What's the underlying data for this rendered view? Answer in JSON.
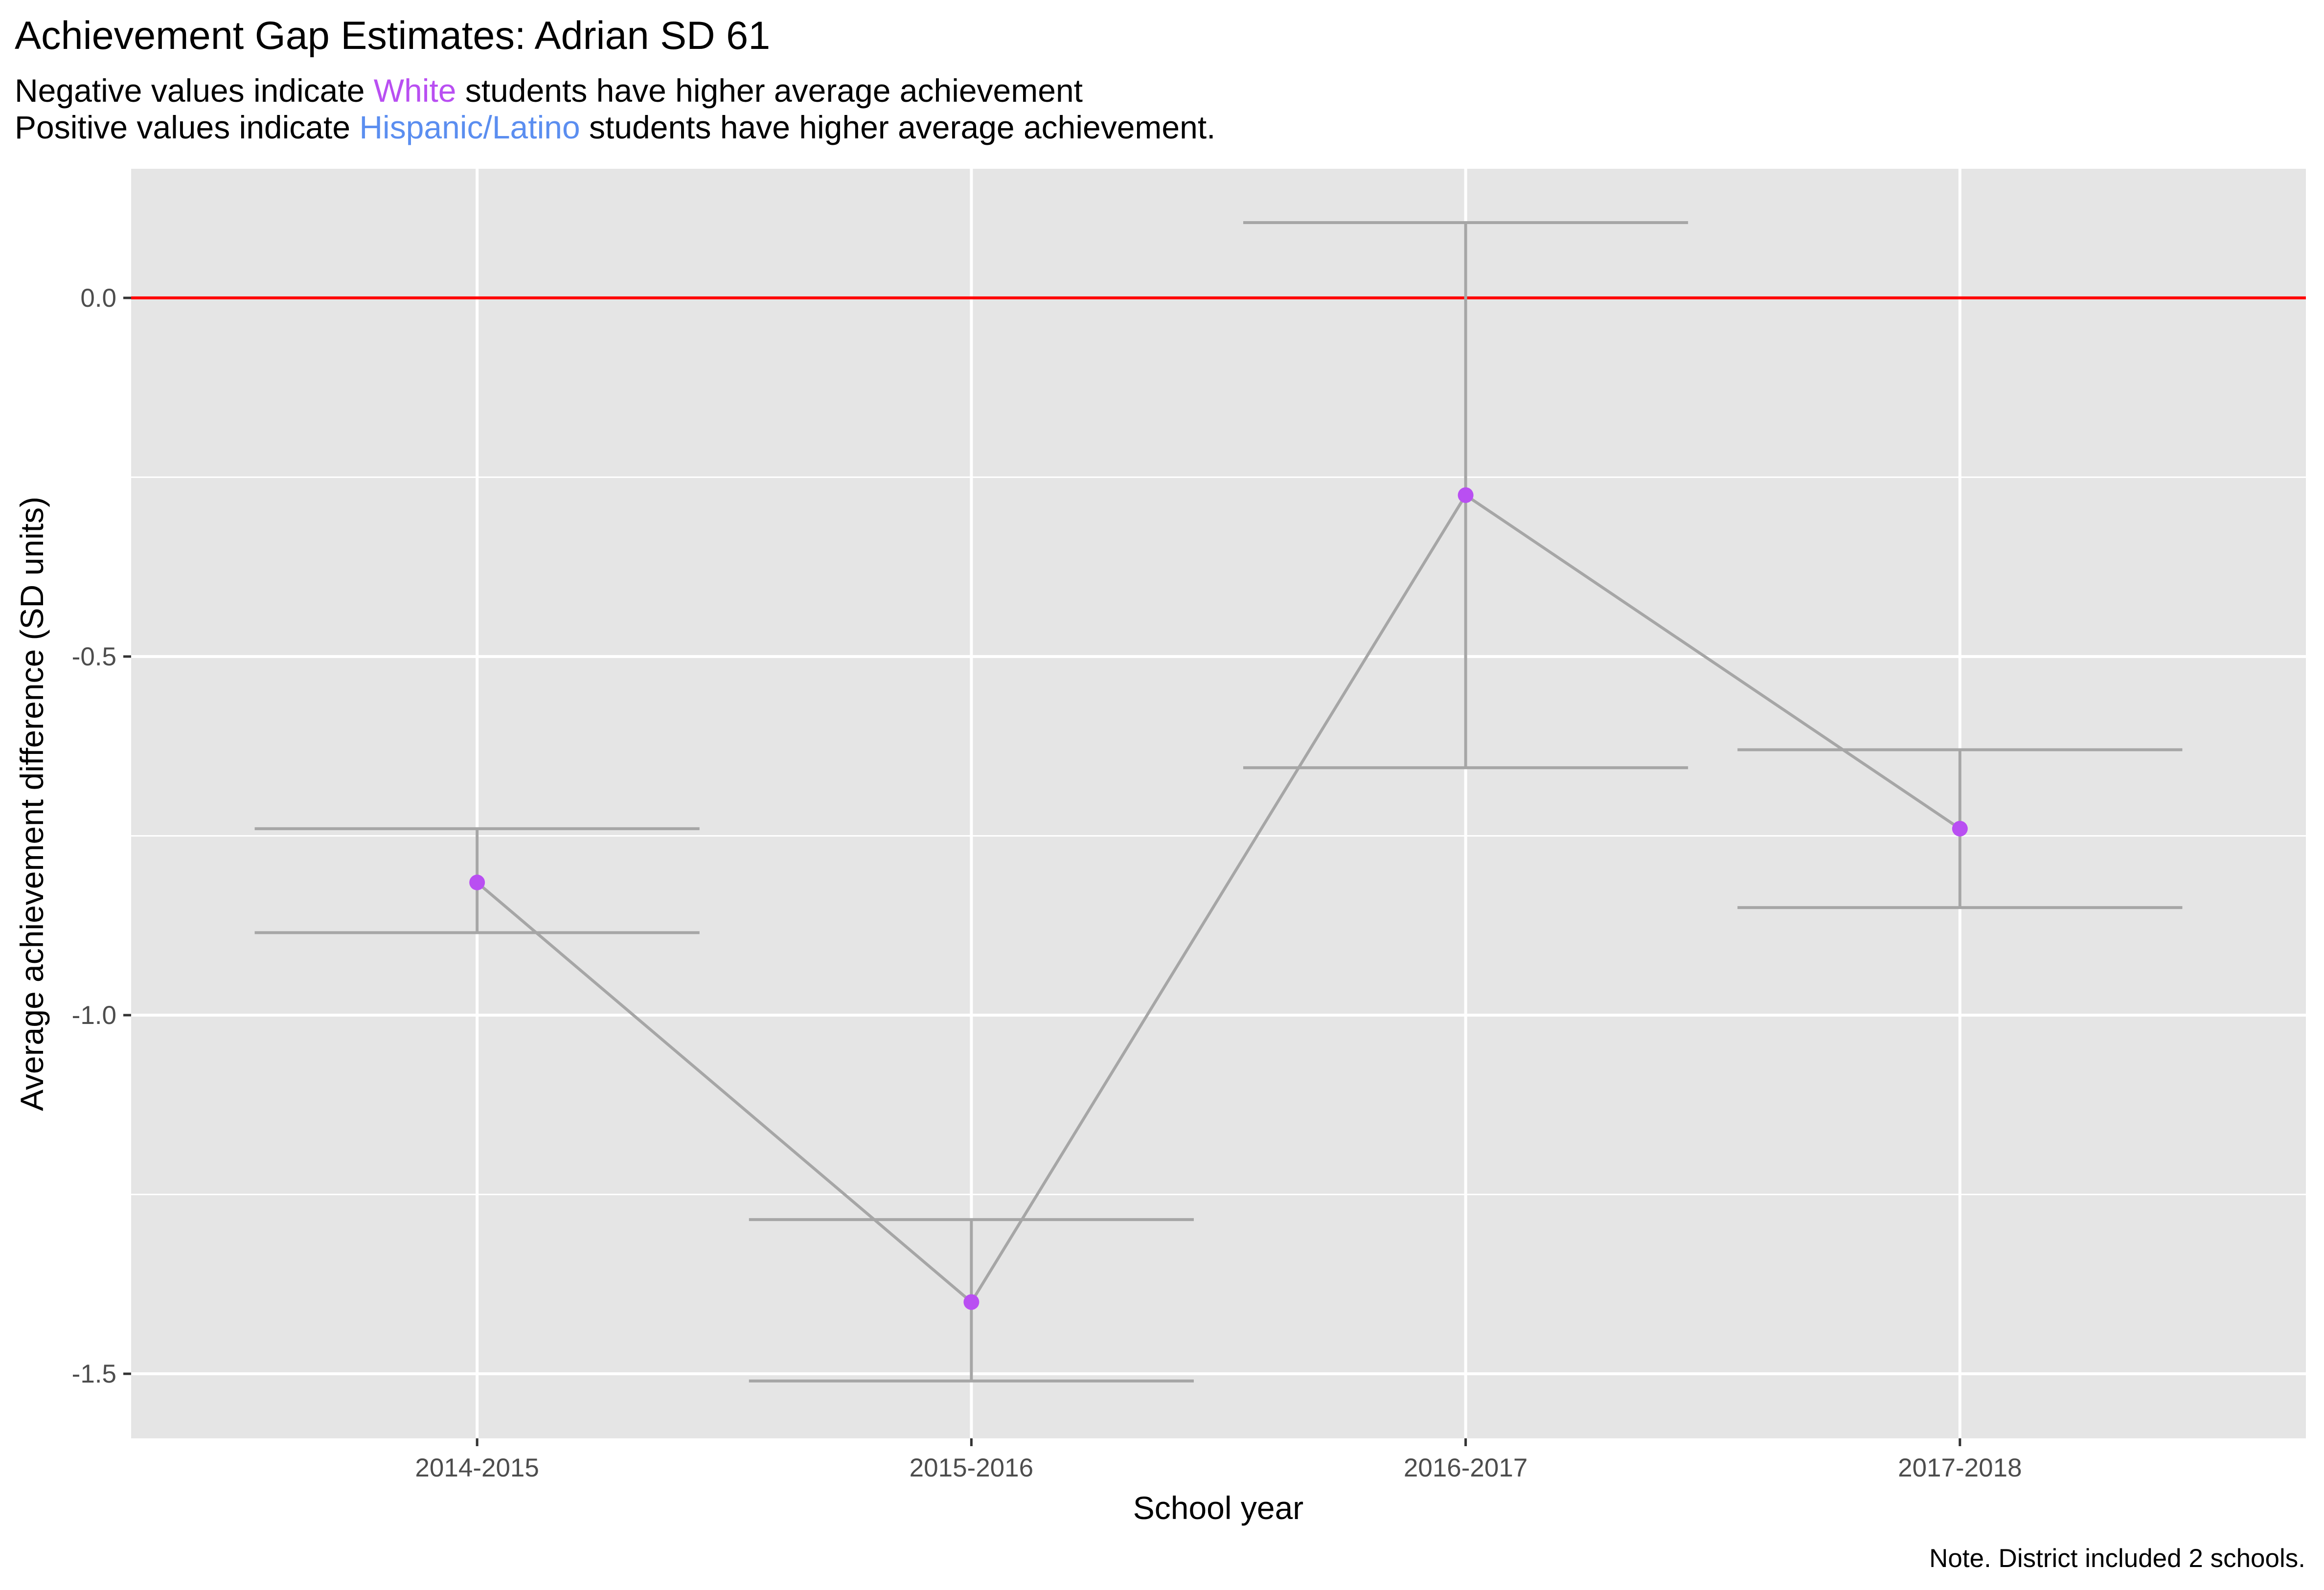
{
  "chart_data": {
    "type": "line",
    "title": "Achievement Gap Estimates: Adrian SD 61",
    "subtitle": {
      "line1": {
        "before": "Negative values indicate ",
        "highlight": "White",
        "after": " students have higher average achievement"
      },
      "line2": {
        "before": "Positive values indicate ",
        "highlight": "Hispanic/Latino",
        "after": " students have higher average achievement."
      }
    },
    "xlabel": "School year",
    "ylabel": "Average achievement difference (SD units)",
    "caption": "Note. District included 2 schools.",
    "categories": [
      "2014-2015",
      "2015-2016",
      "2016-2017",
      "2017-2018"
    ],
    "series": [
      {
        "values": [
          -0.815,
          -1.4,
          -0.275,
          -0.74
        ],
        "lower": [
          -0.885,
          -1.51,
          -0.655,
          -0.85
        ],
        "upper": [
          -0.74,
          -1.285,
          0.105,
          -0.63
        ]
      }
    ],
    "yticks": [
      0.0,
      -0.5,
      -1.0,
      -1.5
    ],
    "ytick_labels": [
      "0.0",
      "-0.5",
      "-1.0",
      "-1.5"
    ],
    "ylim": [
      -1.59,
      0.18
    ],
    "reference_line": 0,
    "grid": true,
    "colors": {
      "panel": "#e5e5e5",
      "grid": "#ffffff",
      "reference": "#ff0000",
      "line": "#a6a6a6",
      "point": "#b94ff2",
      "white_text": "#b94ff2",
      "hispanic_text": "#5b8ef0"
    }
  }
}
